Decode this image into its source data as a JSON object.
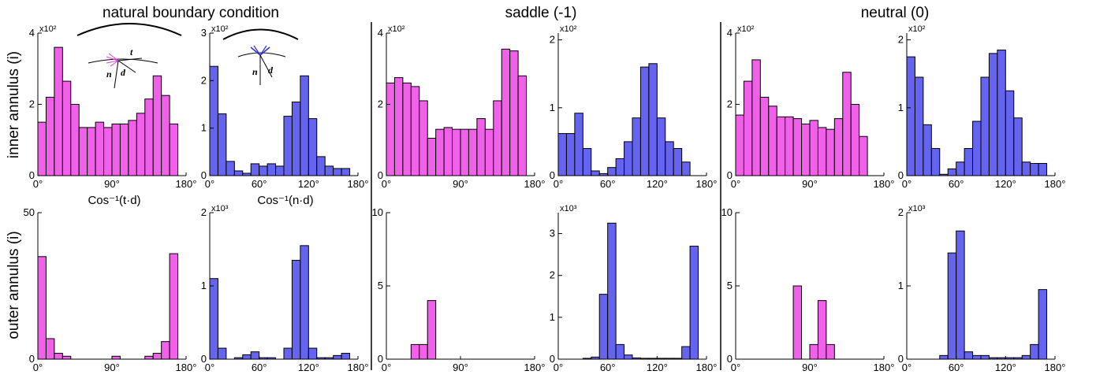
{
  "titles": {
    "natural": "natural boundary condition",
    "saddle": "saddle (-1)",
    "neutral": "neutral (0)"
  },
  "row_labels": {
    "top": "inner annulus (i)",
    "bottom": "outer annulus (i)"
  },
  "x_labels": {
    "td": "Cos⁻¹(t·d)",
    "nd": "Cos⁻¹(n·d)"
  },
  "inset_labels": {
    "t": "t",
    "n": "n",
    "d": "d"
  },
  "colors": {
    "magenta": "#f060e8",
    "blue": "#6464f0",
    "edge": "#000000"
  },
  "chart_data": [
    {
      "type": "bar",
      "group": "natural boundary condition",
      "row": "inner annulus (i)",
      "color": "magenta",
      "xlabel": "Cos⁻¹(t·d)",
      "xlim": [
        0,
        180
      ],
      "ylim": [
        0,
        4
      ],
      "multiplier": "x10²",
      "yticks": [
        "0",
        "2",
        "4"
      ],
      "xticks": [
        "0°",
        "90°",
        "180°"
      ],
      "bin": 10,
      "values": [
        1.5,
        2.2,
        3.6,
        2.65,
        2.0,
        1.35,
        1.35,
        1.5,
        1.35,
        1.45,
        1.45,
        1.55,
        1.75,
        2.15,
        2.8,
        2.25,
        1.45
      ]
    },
    {
      "type": "bar",
      "group": "natural boundary condition",
      "row": "inner annulus (i)",
      "color": "blue",
      "xlabel": "Cos⁻¹(n·d)",
      "xlim": [
        0,
        180
      ],
      "ylim": [
        0,
        3
      ],
      "multiplier": "x10²",
      "yticks": [
        "0",
        "1",
        "2",
        "3"
      ],
      "xticks": [
        "0°",
        "60°",
        "120°",
        "180°"
      ],
      "bin": 10,
      "values": [
        2.3,
        1.3,
        0.3,
        0.1,
        0.05,
        0.25,
        0.2,
        0.25,
        0.2,
        1.25,
        1.55,
        2.1,
        1.2,
        0.4,
        0.2,
        0.15,
        0.15
      ]
    },
    {
      "type": "bar",
      "group": "saddle (-1)",
      "row": "inner annulus (i)",
      "color": "magenta",
      "xlim": [
        0,
        180
      ],
      "ylim": [
        0,
        4
      ],
      "multiplier": "x10²",
      "yticks": [
        "0",
        "2",
        "4"
      ],
      "xticks": [
        "0°",
        "90°",
        "180°"
      ],
      "bin": 10,
      "values": [
        2.6,
        2.75,
        2.6,
        2.5,
        2.1,
        1.05,
        1.3,
        1.35,
        1.3,
        1.3,
        1.3,
        1.6,
        1.3,
        2.1,
        3.55,
        3.5,
        2.8
      ]
    },
    {
      "type": "bar",
      "group": "saddle (-1)",
      "row": "inner annulus (i)",
      "color": "blue",
      "xlim": [
        0,
        180
      ],
      "ylim": [
        0,
        2.1
      ],
      "multiplier": "x10²",
      "yticks": [
        "0",
        "1",
        "2"
      ],
      "xticks": [
        "0°",
        "60°",
        "120°",
        "180°"
      ],
      "bin": 10,
      "values": [
        0.62,
        0.62,
        0.92,
        0.4,
        0.07,
        0.03,
        0.12,
        0.25,
        0.5,
        0.85,
        1.6,
        1.65,
        0.85,
        0.5,
        0.4,
        0.2,
        0.0
      ]
    },
    {
      "type": "bar",
      "group": "neutral (0)",
      "row": "inner annulus (i)",
      "color": "magenta",
      "xlim": [
        0,
        180
      ],
      "ylim": [
        0,
        4
      ],
      "multiplier": "x10²",
      "yticks": [
        "0",
        "2",
        "4"
      ],
      "xticks": [
        "0°",
        "90°",
        "180°"
      ],
      "bin": 10,
      "values": [
        1.7,
        2.65,
        3.25,
        2.2,
        1.95,
        1.65,
        1.65,
        1.6,
        1.45,
        1.55,
        1.35,
        1.3,
        1.6,
        2.9,
        2.0,
        1.1
      ]
    },
    {
      "type": "bar",
      "group": "neutral (0)",
      "row": "inner annulus (i)",
      "color": "blue",
      "xlim": [
        0,
        180
      ],
      "ylim": [
        0,
        2.1
      ],
      "multiplier": "x10²",
      "yticks": [
        "0",
        "1",
        "2"
      ],
      "xticks": [
        "0°",
        "60°",
        "120°",
        "180°"
      ],
      "bin": 10,
      "values": [
        1.75,
        1.45,
        0.75,
        0.4,
        0.02,
        0.1,
        0.2,
        0.4,
        0.8,
        1.45,
        1.8,
        1.85,
        1.25,
        0.85,
        0.2,
        0.18,
        0.18
      ]
    },
    {
      "type": "bar",
      "group": "natural boundary condition",
      "row": "outer annulus (i)",
      "color": "magenta",
      "xlim": [
        0,
        180
      ],
      "ylim": [
        0,
        50
      ],
      "multiplier": "",
      "yticks": [
        "0",
        "50"
      ],
      "xticks": [
        "0°",
        "90°",
        "180°"
      ],
      "bin": 10,
      "values": [
        35,
        7,
        2,
        1,
        0,
        0,
        0,
        0,
        0,
        1,
        0,
        0,
        0,
        1,
        2,
        6,
        36
      ]
    },
    {
      "type": "bar",
      "group": "natural boundary condition",
      "row": "outer annulus (i)",
      "color": "blue",
      "xlim": [
        0,
        180
      ],
      "ylim": [
        0,
        2
      ],
      "multiplier": "x10³",
      "yticks": [
        "0",
        "1",
        "2"
      ],
      "xticks": [
        "0°",
        "60°",
        "120°",
        "180°"
      ],
      "bin": 10,
      "values": [
        1.1,
        0.15,
        0.0,
        0.02,
        0.06,
        0.1,
        0.02,
        0.02,
        0.0,
        0.15,
        1.35,
        1.55,
        0.15,
        0.02,
        0.02,
        0.05,
        0.08
      ]
    },
    {
      "type": "bar",
      "group": "saddle (-1)",
      "row": "outer annulus (i)",
      "color": "magenta",
      "xlim": [
        0,
        180
      ],
      "ylim": [
        0,
        10
      ],
      "multiplier": "",
      "yticks": [
        "0",
        "5",
        "10"
      ],
      "xticks": [
        "0°",
        "90°",
        "180°"
      ],
      "bin": 10,
      "values": [
        0,
        0,
        0,
        1,
        1,
        4,
        0,
        0,
        0,
        0,
        0,
        0,
        0,
        0,
        0,
        0,
        0
      ]
    },
    {
      "type": "bar",
      "group": "saddle (-1)",
      "row": "outer annulus (i)",
      "color": "blue",
      "xlim": [
        0,
        180
      ],
      "ylim": [
        0,
        3.5
      ],
      "multiplier": "x10³",
      "yticks": [
        "0",
        "1",
        "2",
        "3"
      ],
      "xticks": [
        "0°",
        "60°",
        "120°",
        "180°"
      ],
      "bin": 10,
      "values": [
        0,
        0,
        0,
        0.02,
        0.05,
        1.55,
        3.25,
        0.35,
        0.1,
        0.03,
        0.02,
        0.02,
        0.02,
        0.02,
        0.02,
        0.3,
        2.7
      ]
    },
    {
      "type": "bar",
      "group": "neutral (0)",
      "row": "outer annulus (i)",
      "color": "magenta",
      "xlim": [
        0,
        180
      ],
      "ylim": [
        0,
        10
      ],
      "multiplier": "",
      "yticks": [
        "0",
        "5",
        "10"
      ],
      "xticks": [
        "0°",
        "90°",
        "180°"
      ],
      "bin": 10,
      "values": [
        0,
        0,
        0,
        0,
        0,
        0,
        0,
        5,
        0,
        1,
        4,
        1,
        0,
        0,
        0,
        0,
        0
      ]
    },
    {
      "type": "bar",
      "group": "neutral (0)",
      "row": "outer annulus (i)",
      "color": "blue",
      "xlim": [
        0,
        180
      ],
      "ylim": [
        0,
        2
      ],
      "multiplier": "x10³",
      "yticks": [
        "0",
        "1",
        "2"
      ],
      "xticks": [
        "0°",
        "60°",
        "120°",
        "180°"
      ],
      "bin": 10,
      "values": [
        0,
        0,
        0,
        0,
        0.05,
        1.45,
        1.75,
        0.1,
        0.05,
        0.05,
        0.02,
        0.02,
        0.02,
        0.02,
        0.05,
        0.2,
        0.95
      ]
    }
  ]
}
